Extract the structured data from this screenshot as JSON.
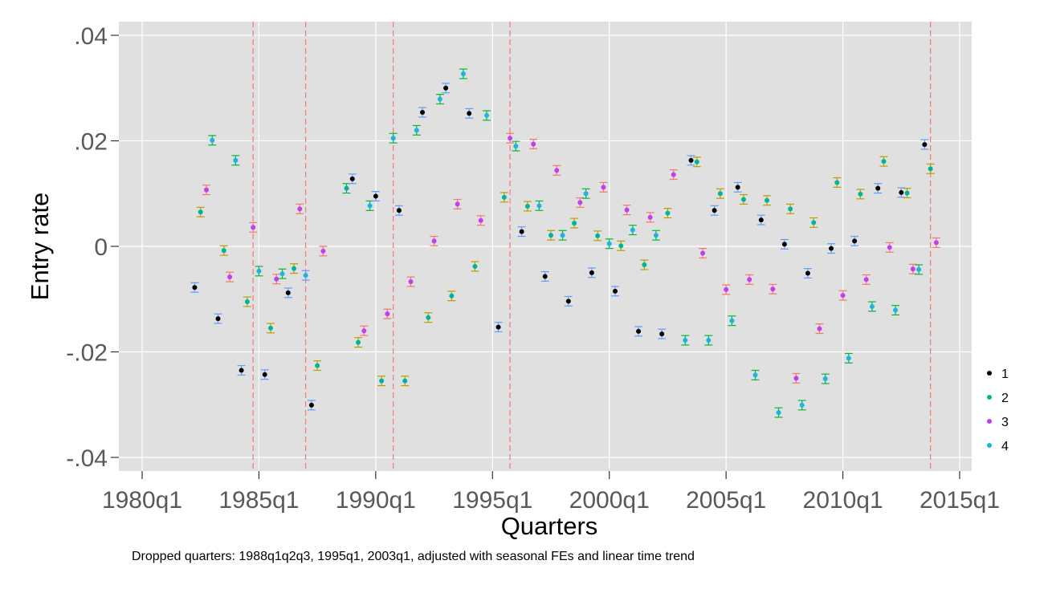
{
  "chart_data": {
    "type": "scatter",
    "xlabel": "Quarters",
    "ylabel": "Entry rate",
    "note": "Dropped quarters: 1988q1q2q3, 1995q1, 2003q1, adjusted with seasonal FEs and linear time trend",
    "xlim": [
      1980.0,
      2015.0
    ],
    "ylim": [
      -0.04,
      0.04
    ],
    "x_ticks": [
      {
        "value": 1980,
        "label": "1980q1"
      },
      {
        "value": 1985,
        "label": "1985q1"
      },
      {
        "value": 1990,
        "label": "1990q1"
      },
      {
        "value": 1995,
        "label": "1995q1"
      },
      {
        "value": 2000,
        "label": "2000q1"
      },
      {
        "value": 2005,
        "label": "2005q1"
      },
      {
        "value": 2010,
        "label": "2010q1"
      },
      {
        "value": 2015,
        "label": "2015q1"
      }
    ],
    "y_ticks": [
      {
        "value": -0.04,
        "label": "-.04"
      },
      {
        "value": -0.02,
        "label": "-.02"
      },
      {
        "value": 0,
        "label": "0"
      },
      {
        "value": 0.02,
        "label": ".02"
      },
      {
        "value": 0.04,
        "label": ".04"
      }
    ],
    "grid": true,
    "legend_position": "right",
    "vlines": [
      1984.75,
      1987.0,
      1990.75,
      1995.75,
      2013.75
    ],
    "vline_color": "#f08080",
    "panel_color": "#e0e0e0",
    "error_bar_colors": [
      "#f8766d",
      "#b79f00",
      "#00ba38",
      "#619cff"
    ],
    "series": [
      {
        "name": "1",
        "color": "#000000"
      },
      {
        "name": "2",
        "color": "#00b49a"
      },
      {
        "name": "3",
        "color": "#c23ff0"
      },
      {
        "name": "4",
        "color": "#1fb3e0"
      }
    ],
    "points": [
      {
        "x": 1982.25,
        "y": -0.0078,
        "s": 0,
        "e": 3
      },
      {
        "x": 1982.5,
        "y": 0.0065,
        "s": 1,
        "e": 1
      },
      {
        "x": 1982.75,
        "y": 0.0107,
        "s": 2,
        "e": 0
      },
      {
        "x": 1983.0,
        "y": 0.0201,
        "s": 3,
        "e": 2
      },
      {
        "x": 1983.25,
        "y": -0.0137,
        "s": 0,
        "e": 3
      },
      {
        "x": 1983.5,
        "y": -0.0008,
        "s": 1,
        "e": 1
      },
      {
        "x": 1983.75,
        "y": -0.0058,
        "s": 2,
        "e": 0
      },
      {
        "x": 1984.0,
        "y": 0.0163,
        "s": 3,
        "e": 2
      },
      {
        "x": 1984.25,
        "y": -0.0235,
        "s": 0,
        "e": 3
      },
      {
        "x": 1984.5,
        "y": -0.0105,
        "s": 1,
        "e": 1
      },
      {
        "x": 1984.75,
        "y": 0.0036,
        "s": 2,
        "e": 0
      },
      {
        "x": 1985.0,
        "y": -0.0047,
        "s": 3,
        "e": 2
      },
      {
        "x": 1985.25,
        "y": -0.0243,
        "s": 0,
        "e": 3
      },
      {
        "x": 1985.5,
        "y": -0.0155,
        "s": 1,
        "e": 1
      },
      {
        "x": 1985.75,
        "y": -0.0062,
        "s": 2,
        "e": 0
      },
      {
        "x": 1986.0,
        "y": -0.0052,
        "s": 3,
        "e": 2
      },
      {
        "x": 1986.25,
        "y": -0.0088,
        "s": 0,
        "e": 3
      },
      {
        "x": 1986.5,
        "y": -0.0042,
        "s": 1,
        "e": 1
      },
      {
        "x": 1986.75,
        "y": 0.0071,
        "s": 2,
        "e": 0
      },
      {
        "x": 1987.0,
        "y": -0.0055,
        "s": 3,
        "e": 3
      },
      {
        "x": 1987.25,
        "y": -0.0301,
        "s": 0,
        "e": 3
      },
      {
        "x": 1987.5,
        "y": -0.0226,
        "s": 1,
        "e": 1
      },
      {
        "x": 1987.75,
        "y": -0.0009,
        "s": 2,
        "e": 0
      },
      {
        "x": 1988.75,
        "y": 0.011,
        "s": 1,
        "e": 2
      },
      {
        "x": 1989.0,
        "y": 0.0128,
        "s": 0,
        "e": 3
      },
      {
        "x": 1989.25,
        "y": -0.0182,
        "s": 1,
        "e": 1
      },
      {
        "x": 1989.5,
        "y": -0.016,
        "s": 2,
        "e": 0
      },
      {
        "x": 1989.75,
        "y": 0.0077,
        "s": 3,
        "e": 2
      },
      {
        "x": 1990.0,
        "y": 0.0095,
        "s": 0,
        "e": 3
      },
      {
        "x": 1990.25,
        "y": -0.0255,
        "s": 1,
        "e": 1
      },
      {
        "x": 1990.5,
        "y": -0.0128,
        "s": 2,
        "e": 0
      },
      {
        "x": 1990.75,
        "y": 0.0205,
        "s": 3,
        "e": 2
      },
      {
        "x": 1991.0,
        "y": 0.0068,
        "s": 0,
        "e": 3
      },
      {
        "x": 1991.25,
        "y": -0.0255,
        "s": 1,
        "e": 1
      },
      {
        "x": 1991.5,
        "y": -0.0067,
        "s": 2,
        "e": 0
      },
      {
        "x": 1991.75,
        "y": 0.022,
        "s": 3,
        "e": 2
      },
      {
        "x": 1992.0,
        "y": 0.0254,
        "s": 0,
        "e": 3
      },
      {
        "x": 1992.25,
        "y": -0.0135,
        "s": 1,
        "e": 1
      },
      {
        "x": 1992.5,
        "y": 0.001,
        "s": 2,
        "e": 0
      },
      {
        "x": 1992.75,
        "y": 0.0279,
        "s": 3,
        "e": 2
      },
      {
        "x": 1993.0,
        "y": 0.03,
        "s": 0,
        "e": 3
      },
      {
        "x": 1993.25,
        "y": -0.0094,
        "s": 1,
        "e": 1
      },
      {
        "x": 1993.5,
        "y": 0.008,
        "s": 2,
        "e": 0
      },
      {
        "x": 1993.75,
        "y": 0.0327,
        "s": 3,
        "e": 2
      },
      {
        "x": 1994.0,
        "y": 0.0252,
        "s": 0,
        "e": 3
      },
      {
        "x": 1994.25,
        "y": -0.0038,
        "s": 1,
        "e": 1
      },
      {
        "x": 1994.5,
        "y": 0.0049,
        "s": 2,
        "e": 0
      },
      {
        "x": 1994.75,
        "y": 0.0248,
        "s": 3,
        "e": 2
      },
      {
        "x": 1995.25,
        "y": -0.0153,
        "s": 0,
        "e": 3
      },
      {
        "x": 1995.5,
        "y": 0.0093,
        "s": 1,
        "e": 1
      },
      {
        "x": 1995.75,
        "y": 0.0205,
        "s": 2,
        "e": 0
      },
      {
        "x": 1996.0,
        "y": 0.019,
        "s": 3,
        "e": 2
      },
      {
        "x": 1996.25,
        "y": 0.0028,
        "s": 0,
        "e": 3
      },
      {
        "x": 1996.5,
        "y": 0.0076,
        "s": 1,
        "e": 1
      },
      {
        "x": 1996.75,
        "y": 0.0194,
        "s": 2,
        "e": 0
      },
      {
        "x": 1997.0,
        "y": 0.0077,
        "s": 3,
        "e": 2
      },
      {
        "x": 1997.25,
        "y": -0.0057,
        "s": 0,
        "e": 3
      },
      {
        "x": 1997.5,
        "y": 0.0021,
        "s": 1,
        "e": 1
      },
      {
        "x": 1997.75,
        "y": 0.0144,
        "s": 2,
        "e": 0
      },
      {
        "x": 1998.0,
        "y": 0.0021,
        "s": 3,
        "e": 2
      },
      {
        "x": 1998.25,
        "y": -0.0104,
        "s": 0,
        "e": 3
      },
      {
        "x": 1998.5,
        "y": 0.0044,
        "s": 1,
        "e": 1
      },
      {
        "x": 1998.75,
        "y": 0.0083,
        "s": 2,
        "e": 0
      },
      {
        "x": 1999.0,
        "y": 0.01,
        "s": 3,
        "e": 2
      },
      {
        "x": 1999.25,
        "y": -0.005,
        "s": 0,
        "e": 3
      },
      {
        "x": 1999.5,
        "y": 0.002,
        "s": 1,
        "e": 1
      },
      {
        "x": 1999.75,
        "y": 0.0112,
        "s": 2,
        "e": 0
      },
      {
        "x": 2000.0,
        "y": 0.0005,
        "s": 3,
        "e": 2
      },
      {
        "x": 2000.25,
        "y": -0.0085,
        "s": 0,
        "e": 3
      },
      {
        "x": 2000.5,
        "y": 0.0001,
        "s": 1,
        "e": 1
      },
      {
        "x": 2000.75,
        "y": 0.0069,
        "s": 2,
        "e": 0
      },
      {
        "x": 2001.0,
        "y": 0.0031,
        "s": 3,
        "e": 2
      },
      {
        "x": 2001.25,
        "y": -0.0161,
        "s": 0,
        "e": 3
      },
      {
        "x": 2001.5,
        "y": -0.0035,
        "s": 1,
        "e": 1
      },
      {
        "x": 2001.75,
        "y": 0.0055,
        "s": 2,
        "e": 0
      },
      {
        "x": 2002.0,
        "y": 0.0021,
        "s": 3,
        "e": 2
      },
      {
        "x": 2002.25,
        "y": -0.0166,
        "s": 0,
        "e": 3
      },
      {
        "x": 2002.5,
        "y": 0.0063,
        "s": 1,
        "e": 1
      },
      {
        "x": 2002.75,
        "y": 0.0136,
        "s": 2,
        "e": 0
      },
      {
        "x": 2003.25,
        "y": -0.0178,
        "s": 3,
        "e": 2
      },
      {
        "x": 2003.5,
        "y": 0.0163,
        "s": 0,
        "e": 3
      },
      {
        "x": 2003.75,
        "y": 0.016,
        "s": 1,
        "e": 1
      },
      {
        "x": 2004.0,
        "y": -0.0013,
        "s": 2,
        "e": 0
      },
      {
        "x": 2004.25,
        "y": -0.0178,
        "s": 3,
        "e": 2
      },
      {
        "x": 2004.5,
        "y": 0.0068,
        "s": 0,
        "e": 3
      },
      {
        "x": 2004.75,
        "y": 0.01,
        "s": 1,
        "e": 1
      },
      {
        "x": 2005.0,
        "y": -0.0082,
        "s": 2,
        "e": 0
      },
      {
        "x": 2005.25,
        "y": -0.0141,
        "s": 3,
        "e": 2
      },
      {
        "x": 2005.5,
        "y": 0.0112,
        "s": 0,
        "e": 3
      },
      {
        "x": 2005.75,
        "y": 0.0089,
        "s": 1,
        "e": 1
      },
      {
        "x": 2006.0,
        "y": -0.0063,
        "s": 2,
        "e": 0
      },
      {
        "x": 2006.25,
        "y": -0.0244,
        "s": 3,
        "e": 2
      },
      {
        "x": 2006.5,
        "y": 0.005,
        "s": 0,
        "e": 3
      },
      {
        "x": 2006.75,
        "y": 0.0087,
        "s": 1,
        "e": 1
      },
      {
        "x": 2007.0,
        "y": -0.0081,
        "s": 2,
        "e": 0
      },
      {
        "x": 2007.25,
        "y": -0.0315,
        "s": 3,
        "e": 2
      },
      {
        "x": 2007.5,
        "y": 0.0004,
        "s": 0,
        "e": 3
      },
      {
        "x": 2007.75,
        "y": 0.0071,
        "s": 1,
        "e": 1
      },
      {
        "x": 2008.0,
        "y": -0.025,
        "s": 2,
        "e": 0
      },
      {
        "x": 2008.25,
        "y": -0.0301,
        "s": 3,
        "e": 2
      },
      {
        "x": 2008.5,
        "y": -0.0051,
        "s": 0,
        "e": 3
      },
      {
        "x": 2008.75,
        "y": 0.0045,
        "s": 1,
        "e": 1
      },
      {
        "x": 2009.0,
        "y": -0.0156,
        "s": 2,
        "e": 0
      },
      {
        "x": 2009.25,
        "y": -0.0251,
        "s": 3,
        "e": 2
      },
      {
        "x": 2009.5,
        "y": -0.0004,
        "s": 0,
        "e": 3
      },
      {
        "x": 2009.75,
        "y": 0.0121,
        "s": 1,
        "e": 1
      },
      {
        "x": 2010.0,
        "y": -0.0093,
        "s": 2,
        "e": 0
      },
      {
        "x": 2010.25,
        "y": -0.0212,
        "s": 3,
        "e": 2
      },
      {
        "x": 2010.5,
        "y": 0.001,
        "s": 0,
        "e": 3
      },
      {
        "x": 2010.75,
        "y": 0.0099,
        "s": 1,
        "e": 1
      },
      {
        "x": 2011.0,
        "y": -0.0063,
        "s": 2,
        "e": 0
      },
      {
        "x": 2011.25,
        "y": -0.0114,
        "s": 3,
        "e": 2
      },
      {
        "x": 2011.5,
        "y": 0.011,
        "s": 0,
        "e": 3
      },
      {
        "x": 2011.75,
        "y": 0.0161,
        "s": 1,
        "e": 1
      },
      {
        "x": 2012.0,
        "y": -0.0002,
        "s": 2,
        "e": 0
      },
      {
        "x": 2012.25,
        "y": -0.0121,
        "s": 3,
        "e": 2
      },
      {
        "x": 2012.5,
        "y": 0.0102,
        "s": 0,
        "e": 3
      },
      {
        "x": 2012.75,
        "y": 0.0101,
        "s": 1,
        "e": 1
      },
      {
        "x": 2013.0,
        "y": -0.0043,
        "s": 2,
        "e": 0
      },
      {
        "x": 2013.25,
        "y": -0.0044,
        "s": 3,
        "e": 2
      },
      {
        "x": 2013.5,
        "y": 0.0193,
        "s": 0,
        "e": 3
      },
      {
        "x": 2013.75,
        "y": 0.0147,
        "s": 1,
        "e": 1
      },
      {
        "x": 2014.0,
        "y": 0.0007,
        "s": 2,
        "e": 0
      }
    ]
  }
}
